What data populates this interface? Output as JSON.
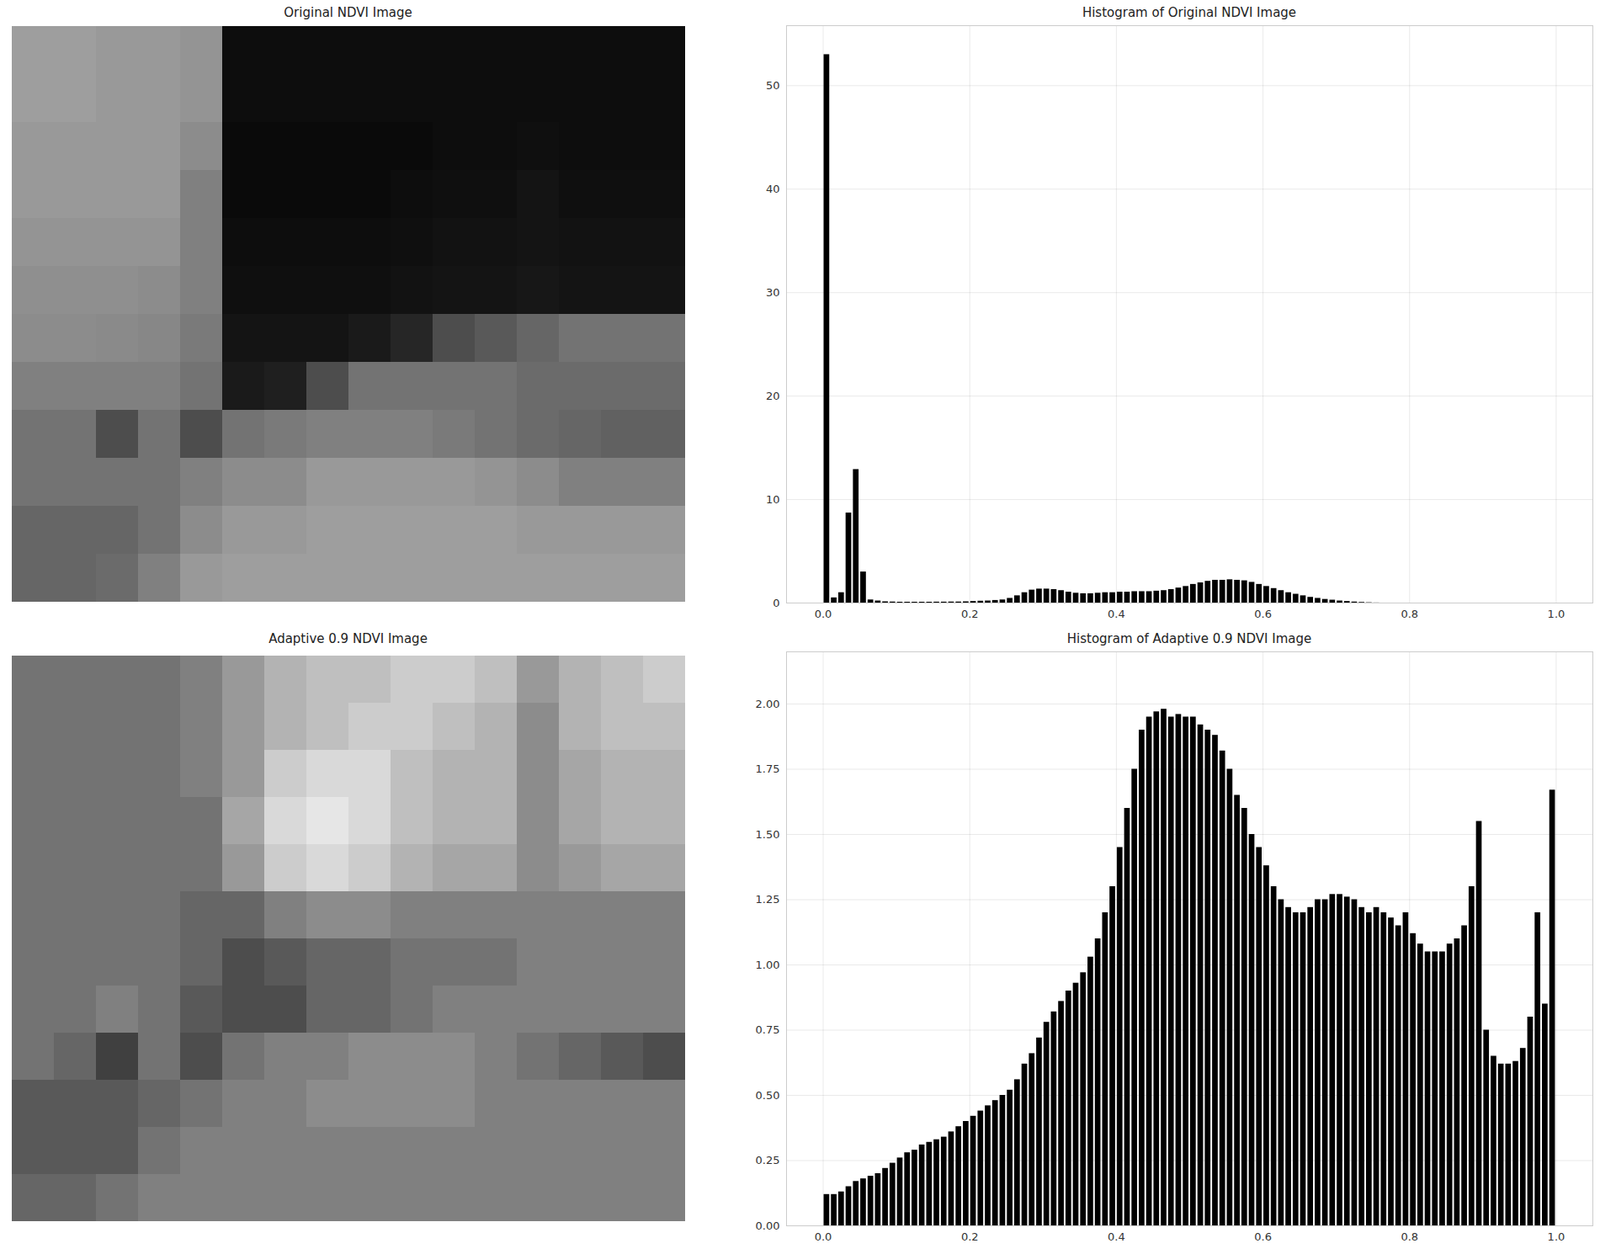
{
  "chart_data": [
    {
      "type": "image",
      "title": "Original NDVI Image",
      "tick_labels": false,
      "color_range": [
        0,
        1
      ],
      "cells": [
        [
          0.62,
          0.62,
          0.6,
          0.6,
          0.58,
          0.05,
          0.05,
          0.05,
          0.05,
          0.05,
          0.05,
          0.05,
          0.05,
          0.05,
          0.05,
          0.05
        ],
        [
          0.62,
          0.62,
          0.6,
          0.6,
          0.58,
          0.05,
          0.05,
          0.05,
          0.05,
          0.05,
          0.05,
          0.05,
          0.05,
          0.05,
          0.05,
          0.05
        ],
        [
          0.6,
          0.6,
          0.6,
          0.6,
          0.55,
          0.04,
          0.04,
          0.04,
          0.04,
          0.04,
          0.05,
          0.05,
          0.06,
          0.05,
          0.05,
          0.05
        ],
        [
          0.6,
          0.6,
          0.6,
          0.6,
          0.5,
          0.04,
          0.04,
          0.04,
          0.04,
          0.05,
          0.06,
          0.06,
          0.08,
          0.06,
          0.06,
          0.06
        ],
        [
          0.58,
          0.58,
          0.58,
          0.58,
          0.5,
          0.05,
          0.05,
          0.05,
          0.05,
          0.06,
          0.07,
          0.07,
          0.08,
          0.07,
          0.07,
          0.07
        ],
        [
          0.56,
          0.56,
          0.56,
          0.55,
          0.5,
          0.06,
          0.06,
          0.06,
          0.06,
          0.07,
          0.08,
          0.08,
          0.09,
          0.08,
          0.08,
          0.08
        ],
        [
          0.55,
          0.55,
          0.54,
          0.53,
          0.48,
          0.08,
          0.08,
          0.08,
          0.1,
          0.15,
          0.3,
          0.35,
          0.4,
          0.45,
          0.45,
          0.45
        ],
        [
          0.5,
          0.5,
          0.5,
          0.5,
          0.45,
          0.1,
          0.12,
          0.3,
          0.45,
          0.45,
          0.45,
          0.45,
          0.42,
          0.42,
          0.42,
          0.42
        ],
        [
          0.45,
          0.45,
          0.3,
          0.45,
          0.3,
          0.45,
          0.48,
          0.5,
          0.5,
          0.5,
          0.48,
          0.45,
          0.42,
          0.4,
          0.38,
          0.38
        ],
        [
          0.45,
          0.45,
          0.45,
          0.45,
          0.5,
          0.55,
          0.55,
          0.6,
          0.6,
          0.6,
          0.6,
          0.58,
          0.55,
          0.5,
          0.5,
          0.5
        ],
        [
          0.4,
          0.4,
          0.4,
          0.45,
          0.55,
          0.6,
          0.6,
          0.62,
          0.62,
          0.62,
          0.62,
          0.62,
          0.6,
          0.6,
          0.6,
          0.6
        ],
        [
          0.4,
          0.4,
          0.42,
          0.5,
          0.6,
          0.62,
          0.62,
          0.62,
          0.62,
          0.62,
          0.62,
          0.62,
          0.62,
          0.62,
          0.62,
          0.62
        ]
      ]
    },
    {
      "type": "histogram",
      "title": "Histogram of Original NDVI Image",
      "color": "#000000",
      "grid": true,
      "bins": [
        0,
        0.01,
        0.02,
        0.03,
        0.04,
        0.05,
        0.06,
        0.07,
        0.08,
        0.09,
        0.1,
        0.11,
        0.12,
        0.13,
        0.14,
        0.15,
        0.16,
        0.17,
        0.18,
        0.19,
        0.2,
        0.21,
        0.22,
        0.23,
        0.24,
        0.25,
        0.26,
        0.27,
        0.28,
        0.29,
        0.3,
        0.31,
        0.32,
        0.33,
        0.34,
        0.35,
        0.36,
        0.37,
        0.38,
        0.39,
        0.4,
        0.41,
        0.42,
        0.43,
        0.44,
        0.45,
        0.46,
        0.47,
        0.48,
        0.49,
        0.5,
        0.51,
        0.52,
        0.53,
        0.54,
        0.55,
        0.56,
        0.57,
        0.58,
        0.59,
        0.6,
        0.61,
        0.62,
        0.63,
        0.64,
        0.65,
        0.66,
        0.67,
        0.68,
        0.69,
        0.7,
        0.71,
        0.72,
        0.73,
        0.74,
        0.75,
        0.76,
        0.77,
        0.78,
        0.79,
        0.8,
        0.81,
        0.82,
        0.83,
        0.84,
        0.85,
        0.86,
        0.87,
        0.88,
        0.89,
        0.9,
        0.91,
        0.92,
        0.93,
        0.94,
        0.95,
        0.96,
        0.97,
        0.98,
        0.99,
        1
      ],
      "counts": [
        53,
        0.5,
        1.0,
        8.7,
        12.9,
        3.0,
        0.3,
        0.2,
        0.12,
        0.1,
        0.08,
        0.08,
        0.08,
        0.08,
        0.08,
        0.09,
        0.09,
        0.1,
        0.1,
        0.12,
        0.15,
        0.18,
        0.2,
        0.25,
        0.3,
        0.45,
        0.7,
        1.0,
        1.25,
        1.35,
        1.35,
        1.3,
        1.2,
        1.05,
        0.95,
        0.9,
        0.9,
        0.95,
        1.0,
        1.0,
        1.05,
        1.05,
        1.1,
        1.1,
        1.1,
        1.15,
        1.2,
        1.3,
        1.45,
        1.6,
        1.8,
        1.95,
        2.1,
        2.2,
        2.2,
        2.25,
        2.2,
        2.15,
        2.0,
        1.8,
        1.6,
        1.4,
        1.2,
        1.0,
        0.85,
        0.7,
        0.55,
        0.45,
        0.35,
        0.28,
        0.2,
        0.15,
        0.1,
        0.06,
        0.03,
        0.01,
        0,
        0,
        0,
        0,
        0,
        0,
        0,
        0,
        0,
        0,
        0,
        0,
        0,
        0,
        0,
        0,
        0,
        0,
        0,
        0,
        0,
        0,
        0,
        0
      ],
      "xlim": [
        -0.05,
        1.05
      ],
      "xticks": [
        {
          "value": 0,
          "label": "0.0"
        },
        {
          "value": 0.2,
          "label": "0.2"
        },
        {
          "value": 0.4,
          "label": "0.4"
        },
        {
          "value": 0.6,
          "label": "0.6"
        },
        {
          "value": 0.8,
          "label": "0.8"
        },
        {
          "value": 1,
          "label": "1.0"
        }
      ],
      "ylim": [
        0,
        55.8
      ],
      "yticks": [
        0,
        10,
        20,
        30,
        40,
        50
      ]
    },
    {
      "type": "image",
      "title": "Adaptive 0.9 NDVI Image",
      "tick_labels": false,
      "color_range": [
        0,
        1
      ],
      "cells": [
        [
          0.45,
          0.45,
          0.45,
          0.45,
          0.5,
          0.6,
          0.7,
          0.75,
          0.75,
          0.8,
          0.8,
          0.75,
          0.6,
          0.7,
          0.75,
          0.8
        ],
        [
          0.45,
          0.45,
          0.45,
          0.45,
          0.5,
          0.6,
          0.7,
          0.75,
          0.8,
          0.8,
          0.75,
          0.7,
          0.55,
          0.7,
          0.75,
          0.75
        ],
        [
          0.45,
          0.45,
          0.45,
          0.45,
          0.5,
          0.6,
          0.8,
          0.85,
          0.85,
          0.75,
          0.7,
          0.7,
          0.55,
          0.65,
          0.7,
          0.7
        ],
        [
          0.45,
          0.45,
          0.45,
          0.45,
          0.45,
          0.65,
          0.85,
          0.9,
          0.85,
          0.75,
          0.7,
          0.7,
          0.55,
          0.65,
          0.7,
          0.7
        ],
        [
          0.45,
          0.45,
          0.45,
          0.45,
          0.45,
          0.6,
          0.8,
          0.85,
          0.8,
          0.7,
          0.65,
          0.65,
          0.55,
          0.6,
          0.65,
          0.65
        ],
        [
          0.45,
          0.45,
          0.45,
          0.45,
          0.4,
          0.4,
          0.5,
          0.55,
          0.55,
          0.5,
          0.5,
          0.5,
          0.5,
          0.5,
          0.5,
          0.5
        ],
        [
          0.45,
          0.45,
          0.45,
          0.45,
          0.4,
          0.3,
          0.35,
          0.4,
          0.4,
          0.45,
          0.45,
          0.45,
          0.5,
          0.5,
          0.5,
          0.5
        ],
        [
          0.45,
          0.45,
          0.5,
          0.45,
          0.35,
          0.3,
          0.3,
          0.4,
          0.4,
          0.45,
          0.5,
          0.5,
          0.5,
          0.5,
          0.5,
          0.5
        ],
        [
          0.45,
          0.4,
          0.25,
          0.45,
          0.3,
          0.45,
          0.5,
          0.5,
          0.55,
          0.55,
          0.55,
          0.5,
          0.45,
          0.4,
          0.35,
          0.3
        ],
        [
          0.35,
          0.35,
          0.35,
          0.4,
          0.45,
          0.5,
          0.5,
          0.55,
          0.55,
          0.55,
          0.55,
          0.5,
          0.5,
          0.5,
          0.5,
          0.5
        ],
        [
          0.35,
          0.35,
          0.35,
          0.45,
          0.5,
          0.5,
          0.5,
          0.5,
          0.5,
          0.5,
          0.5,
          0.5,
          0.5,
          0.5,
          0.5,
          0.5
        ],
        [
          0.4,
          0.4,
          0.45,
          0.5,
          0.5,
          0.5,
          0.5,
          0.5,
          0.5,
          0.5,
          0.5,
          0.5,
          0.5,
          0.5,
          0.5,
          0.5
        ]
      ]
    },
    {
      "type": "histogram",
      "title": "Histogram of Adaptive 0.9 NDVI Image",
      "color": "#000000",
      "grid": true,
      "bins": [
        0,
        0.01,
        0.02,
        0.03,
        0.04,
        0.05,
        0.06,
        0.07,
        0.08,
        0.09,
        0.1,
        0.11,
        0.12,
        0.13,
        0.14,
        0.15,
        0.16,
        0.17,
        0.18,
        0.19,
        0.2,
        0.21,
        0.22,
        0.23,
        0.24,
        0.25,
        0.26,
        0.27,
        0.28,
        0.29,
        0.3,
        0.31,
        0.32,
        0.33,
        0.34,
        0.35,
        0.36,
        0.37,
        0.38,
        0.39,
        0.4,
        0.41,
        0.42,
        0.43,
        0.44,
        0.45,
        0.46,
        0.47,
        0.48,
        0.49,
        0.5,
        0.51,
        0.52,
        0.53,
        0.54,
        0.55,
        0.56,
        0.57,
        0.58,
        0.59,
        0.6,
        0.61,
        0.62,
        0.63,
        0.64,
        0.65,
        0.66,
        0.67,
        0.68,
        0.69,
        0.7,
        0.71,
        0.72,
        0.73,
        0.74,
        0.75,
        0.76,
        0.77,
        0.78,
        0.79,
        0.8,
        0.81,
        0.82,
        0.83,
        0.84,
        0.85,
        0.86,
        0.87,
        0.88,
        0.89,
        0.9,
        0.91,
        0.92,
        0.93,
        0.94,
        0.95,
        0.96,
        0.97,
        0.98,
        0.99,
        1
      ],
      "counts": [
        0.12,
        0.12,
        0.13,
        0.15,
        0.17,
        0.18,
        0.19,
        0.2,
        0.22,
        0.24,
        0.26,
        0.28,
        0.29,
        0.31,
        0.32,
        0.33,
        0.34,
        0.36,
        0.38,
        0.4,
        0.42,
        0.44,
        0.46,
        0.48,
        0.5,
        0.52,
        0.56,
        0.62,
        0.66,
        0.72,
        0.78,
        0.82,
        0.86,
        0.9,
        0.93,
        0.97,
        1.03,
        1.1,
        1.2,
        1.3,
        1.45,
        1.6,
        1.75,
        1.9,
        1.95,
        1.97,
        1.98,
        1.95,
        1.96,
        1.95,
        1.95,
        1.92,
        1.9,
        1.88,
        1.82,
        1.75,
        1.65,
        1.6,
        1.5,
        1.45,
        1.38,
        1.3,
        1.25,
        1.22,
        1.2,
        1.2,
        1.22,
        1.25,
        1.25,
        1.27,
        1.27,
        1.26,
        1.25,
        1.22,
        1.2,
        1.22,
        1.2,
        1.18,
        1.15,
        1.2,
        1.12,
        1.08,
        1.05,
        1.05,
        1.05,
        1.08,
        1.1,
        1.15,
        1.3,
        1.55,
        0.75,
        0.65,
        0.62,
        0.62,
        0.63,
        0.68,
        0.8,
        1.2,
        0.85,
        1.67
      ],
      "xlim": [
        -0.05,
        1.05
      ],
      "xticks": [
        {
          "value": 0,
          "label": "0.0"
        },
        {
          "value": 0.2,
          "label": "0.2"
        },
        {
          "value": 0.4,
          "label": "0.4"
        },
        {
          "value": 0.6,
          "label": "0.6"
        },
        {
          "value": 0.8,
          "label": "0.8"
        },
        {
          "value": 1,
          "label": "1.0"
        }
      ],
      "ylim": [
        0,
        2.2
      ],
      "yticks": [
        {
          "value": 0,
          "label": "0.00"
        },
        {
          "value": 0.25,
          "label": "0.25"
        },
        {
          "value": 0.5,
          "label": "0.50"
        },
        {
          "value": 0.75,
          "label": "0.75"
        },
        {
          "value": 1,
          "label": "1.00"
        },
        {
          "value": 1.25,
          "label": "1.25"
        },
        {
          "value": 1.5,
          "label": "1.50"
        },
        {
          "value": 1.75,
          "label": "1.75"
        },
        {
          "value": 2,
          "label": "2.00"
        }
      ]
    }
  ]
}
